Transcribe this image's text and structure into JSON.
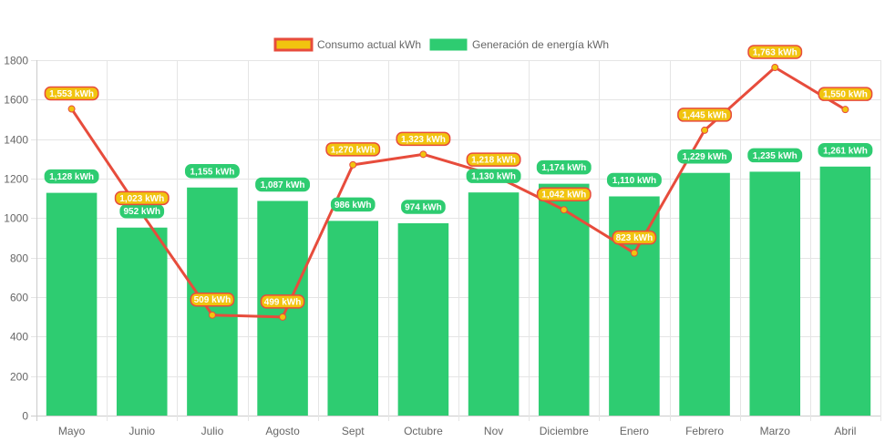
{
  "chart_data": {
    "type": "bar",
    "title": "",
    "xlabel": "",
    "ylabel": "",
    "ylim": [
      0,
      1800
    ],
    "yticks": [
      0,
      200,
      400,
      600,
      800,
      1000,
      1200,
      1400,
      1600,
      1800
    ],
    "grid": true,
    "legend_position": "top",
    "categories": [
      "Mayo",
      "Junio",
      "Julio",
      "Agosto",
      "Sept",
      "Octubre",
      "Nov",
      "Diciembre",
      "Enero",
      "Febrero",
      "Marzo",
      "Abril"
    ],
    "series": [
      {
        "name": "Consumo actual kWh",
        "type": "line",
        "color": "#e74c3c",
        "fill": "#f1c40f",
        "values": [
          1553,
          1023,
          509,
          499,
          1270,
          1323,
          1218,
          1042,
          823,
          1445,
          1763,
          1550
        ],
        "labels": [
          "1,553 kWh",
          "1,023 kWh",
          "509 kWh",
          "499 kWh",
          "1,270 kWh",
          "1,323 kWh",
          "1,218 kWh",
          "1,042 kWh",
          "823 kWh",
          "1,445 kWh",
          "1,763 kWh",
          "1,550 kWh"
        ]
      },
      {
        "name": "Generación de energía kWh",
        "type": "bar",
        "color": "#2ecc71",
        "values": [
          1128,
          952,
          1155,
          1087,
          986,
          974,
          1130,
          1174,
          1110,
          1229,
          1235,
          1261
        ],
        "labels": [
          "1,128 kWh",
          "952 kWh",
          "1,155 kWh",
          "1,087 kWh",
          "986 kWh",
          "974 kWh",
          "1,130 kWh",
          "1,174 kWh",
          "1,110 kWh",
          "1,229 kWh",
          "1,235 kWh",
          "1,261 kWh"
        ]
      }
    ]
  },
  "legend": {
    "consumo": "Consumo actual kWh",
    "generacion": "Generación de energía kWh"
  }
}
